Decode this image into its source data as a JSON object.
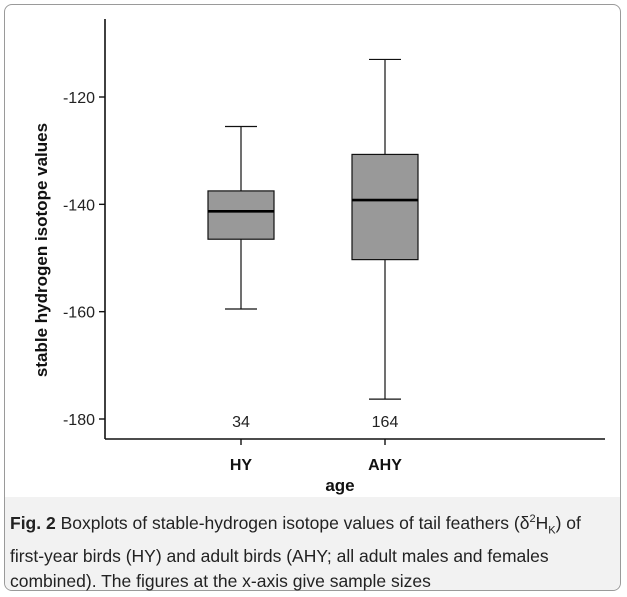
{
  "chart_data": {
    "type": "boxplot",
    "xlabel": "age",
    "ylabel": "stable hydrogen isotope values",
    "ylim": [
      -183,
      -104
    ],
    "yticks": [
      "-120",
      "-140",
      "-160",
      "-180"
    ],
    "categories": [
      "HY",
      "AHY"
    ],
    "boxes": [
      {
        "category": "HY",
        "whisker_low": -159.5,
        "q1": -146.5,
        "median": -141.3,
        "q3": -137.5,
        "whisker_high": -125.5,
        "n": "34"
      },
      {
        "category": "AHY",
        "whisker_low": -176.3,
        "q1": -150.3,
        "median": -139.2,
        "q3": -130.7,
        "whisker_high": -113.0,
        "n": "164"
      }
    ],
    "colors": {
      "box_fill": "#999999",
      "stroke": "#111111"
    }
  },
  "caption": {
    "label": "Fig. 2",
    "text_part1": " Boxplots of stable-hydrogen isotope values of tail feathers (δ",
    "sup": "2",
    "base": "H",
    "sub": "K",
    "text_part2": ") of first-year birds (HY) and adult birds (AHY; all adult males and females combined). The figures at the x-axis give sample sizes"
  }
}
